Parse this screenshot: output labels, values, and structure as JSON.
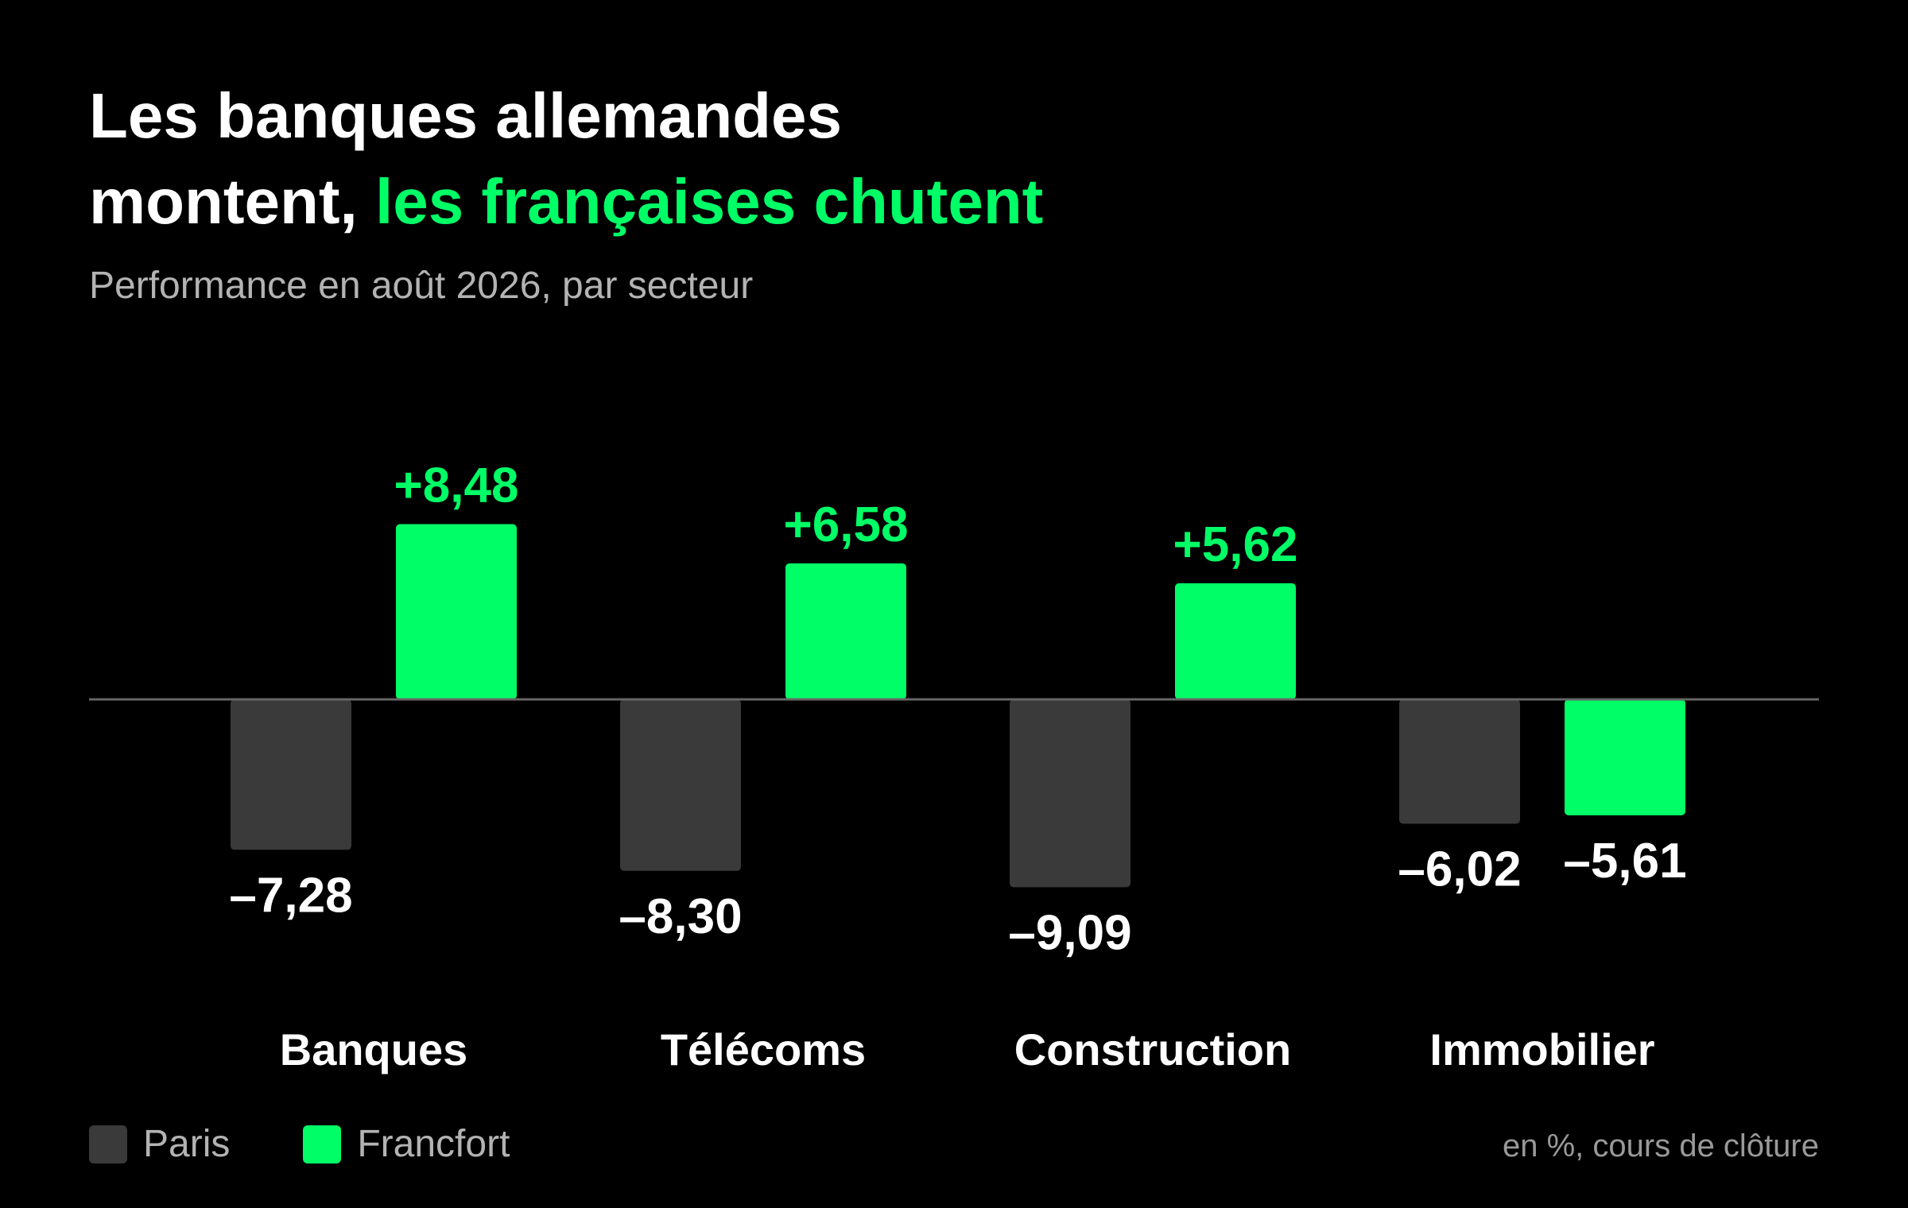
{
  "title": {
    "line1": "Les banques allemandes",
    "line2_plain": "montent, ",
    "line2_accent": "les françaises chutent"
  },
  "subtitle": "Performance en août 2026, par secteur",
  "footnote": "en %, cours de clôture",
  "colors": {
    "paris": "#3a3a3a",
    "francfort": "#00ff66",
    "background": "#000000",
    "baseline": "#666666"
  },
  "chart_data": {
    "type": "bar",
    "categories": [
      "Banques",
      "Télécoms",
      "Construction",
      "Immobilier"
    ],
    "series": [
      {
        "name": "Paris",
        "values": [
          -7.28,
          -8.3,
          -9.09,
          -6.02
        ],
        "labels": [
          "–7,28",
          "–8,30",
          "–9,09",
          "–6,02"
        ]
      },
      {
        "name": "Francfort",
        "values": [
          8.48,
          6.58,
          5.62,
          -5.61
        ],
        "labels": [
          "+8,48",
          "+6,58",
          "+5,62",
          "–5,61"
        ]
      }
    ],
    "legend": "bottom-left",
    "grid": false,
    "ylim": [
      -12,
      12
    ]
  }
}
